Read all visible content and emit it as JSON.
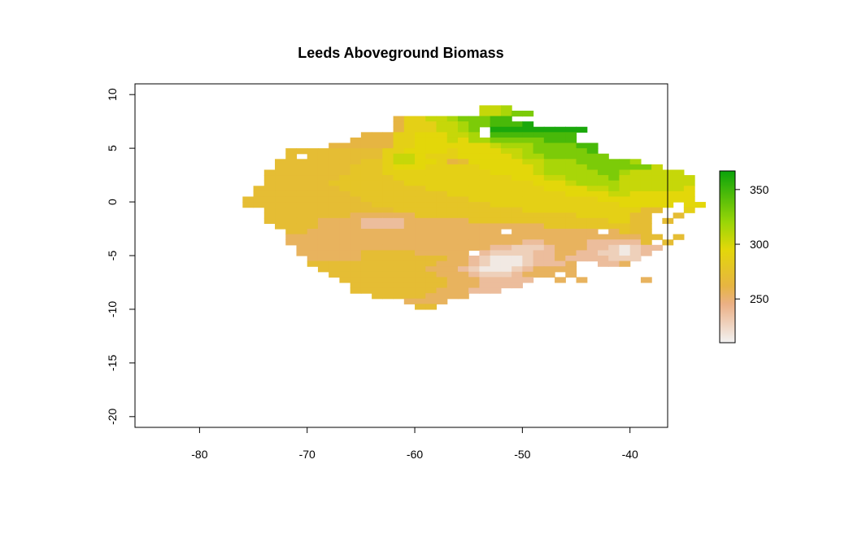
{
  "chart_data": {
    "type": "heatmap",
    "title": "Leeds Aboveground Biomass",
    "xlabel": "",
    "ylabel": "",
    "xlim": [
      -86,
      -36.5
    ],
    "ylim": [
      -21,
      11
    ],
    "x_ticks": [
      -80,
      -70,
      -60,
      -50,
      -40
    ],
    "y_ticks": [
      10,
      5,
      0,
      -5,
      -10,
      -15,
      -20
    ],
    "x_tick_labels": [
      "-80",
      "-70",
      "-60",
      "-50",
      "-40"
    ],
    "y_tick_labels": [
      "10",
      "5",
      "0",
      "-5",
      "-10",
      "-15",
      "-20"
    ],
    "grid": false,
    "legend": {
      "placement": "right",
      "range": [
        210,
        367
      ],
      "ticks": [
        250,
        300,
        350
      ],
      "tick_labels": [
        "250",
        "300",
        "350"
      ],
      "colors": [
        "#f2f2f2",
        "#ebb086",
        "#e6b542",
        "#e3d70a",
        "#9ad607",
        "#0ba30b"
      ],
      "color_stops": [
        210,
        245,
        262,
        295,
        320,
        367
      ]
    },
    "grid_spec": {
      "cell_deg": 1,
      "col_start": -80,
      "row_start": 10,
      "legend_codes": {
        "W": 215,
        "L": 228,
        "P": 238,
        "p": 248,
        "Q": 255,
        "O": 262,
        "o": 270,
        "y": 278,
        "Y": 288,
        "U": 295,
        "M": 305,
        "N": 315,
        "G": 330,
        "D": 347,
        "K": 362
      }
    },
    "rows": [
      "................................................",
      "...........................",
      "..........................MMN",
      "..........................MMNGG",
      "..................OYYMMNGGGDD",
      "..................OYYYMMNGGDDDK",
      "..................OYYYMMNG.KKKKKKKKK",
      "...............OOOYYUUUMMN.DDDDDDDD",
      "..............OOOOYYUUUMUNNGGGGGDDD",
      "............OOOOOOYYUUUUUUUMNNNGGGGDD",
      "........oooooooooYYUUUUYUUUUMMNGGGGGD",
      "........o.oooooooYMMUYYYUUUUUMNNGGGGGG",
      ".......ooooooooyyYMMUUYOoUUUUUMMNNNGGGGGN",
      ".......oooooooyyyYUUUYYYYYUUUUUMNNNNGGGGGGM",
      "......ooooooooyyyYYYYYYYYYYUUUUMNNNNNGGNMMMMM",
      "......oooooooyyyyyYYYYYYYYYYYUUUMMNNNNGMMMMMMM",
      "......ooooooyyyyyyyYYYYYYYYYYYYUUUMNNNNMMMMMMM",
      ".....ooooooooyyyyyyyyYYYYYYYYYYYUUUUMMNMMMMMMU",
      ".....oooooooooyyyyyyyyyYYYYYYYYYYYUUUUMMUUUUUU",
      "....oooooooooooyyyyyyyyyyYYYYYYYYYYYYUUUUUUUUU",
      "....ooooooooooooyyyyyyyyyyyYYYYYYYYYYYYUUUUU.UU",
      "......ooooooooooooyyyyyyyyyyyyYYYYYYYYYYYoo..Y",
      "......ooooooooQQQQQQyyyyyyyyyyyyyyyYYYYYoo..o",
      "......oooooQQQQPPPPQQQQQQyyyyyyyyyyyyyYYoo.o",
      ".......ooooQQQQPPPPQQQQQQQQQQQQQyyyyyyyyoo",
      "........ooQQQQQQQQQQQQQQQQQQ.QQQQQQQQ.Qyoo",
      "........QQQQQQQQQQQQQQQQQQQQQQQQQQQQQQQQQoo.o",
      "........QQQQQQQQQQQQQQQQQQQQQQPPQQQQPPPPPo.o",
      ".........QQQQQQQQQQQQQQQQQQPPLLLPQQQPPLWLPP",
      ".........QQQQQQoooooQQQQQ.PLLLLPPQQPPLLWLP",
      "..........QQQQQooooooooQQPLWWWLPPQPPPPLLL",
      "..........ooooooooooooQQQPLWWWLPPPQ..PPQ",
      "...........ooooooooooQQQPLWWWLPQQQQ",
      "............ooooooooooQQQPLLLPQQQ.Q",
      ".............ooooooooooQQQPPPPP..Q.Q.....Q",
      "..............oooooooooQQQPPPP",
      "..............ooooooooQQQPPP",
      "................oooooQQQQ",
      "...................QQQQ",
      "....................oo"
    ]
  }
}
